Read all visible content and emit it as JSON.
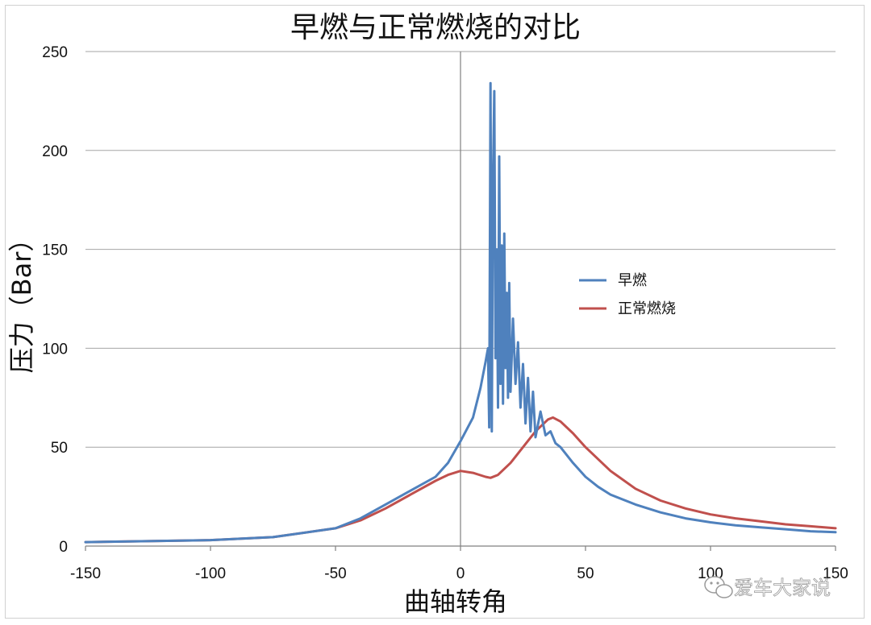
{
  "chart_data": {
    "type": "line",
    "title": "早燃与正常燃烧的对比",
    "xlabel": "曲轴转角",
    "ylabel": "压力（Bar）",
    "xlim": [
      -150,
      150
    ],
    "ylim": [
      0,
      250
    ],
    "xticks": [
      "-150",
      "-100",
      "-50",
      "0",
      "50",
      "100",
      "150"
    ],
    "yticks": [
      "0",
      "50",
      "100",
      "150",
      "200",
      "250"
    ],
    "grid": "horizontal",
    "legend_position": "right",
    "series": [
      {
        "name": "早燃",
        "color": "#4f81bd",
        "x": [
          -150,
          -100,
          -75,
          -50,
          -40,
          -30,
          -20,
          -10,
          -5,
          0,
          5,
          8,
          10,
          11,
          11.5,
          12,
          12.5,
          13,
          13.5,
          14,
          14.5,
          15,
          15.5,
          16,
          16.5,
          17,
          17.5,
          18,
          18.5,
          19,
          19.5,
          20,
          21,
          22,
          23,
          24,
          25,
          26,
          27,
          28,
          29,
          30,
          32,
          34,
          36,
          38,
          40,
          45,
          50,
          55,
          60,
          70,
          80,
          90,
          100,
          110,
          120,
          130,
          140,
          150
        ],
        "values": [
          2,
          3,
          4.5,
          9,
          14,
          21,
          28,
          35,
          42,
          53,
          65,
          80,
          93,
          100,
          60,
          234,
          58,
          185,
          230,
          95,
          150,
          70,
          197,
          82,
          152,
          72,
          158,
          90,
          128,
          75,
          133,
          78,
          115,
          82,
          103,
          70,
          92,
          62,
          85,
          58,
          78,
          55,
          68,
          56,
          58,
          52,
          50,
          42,
          35,
          30,
          26,
          21,
          17,
          14,
          12,
          10.5,
          9.5,
          8.5,
          7.5,
          7
        ]
      },
      {
        "name": "正常燃烧",
        "color": "#c0504d",
        "x": [
          -150,
          -100,
          -75,
          -50,
          -40,
          -30,
          -20,
          -10,
          -5,
          0,
          5,
          10,
          12,
          15,
          20,
          25,
          30,
          35,
          37,
          40,
          45,
          50,
          60,
          70,
          80,
          90,
          100,
          110,
          120,
          130,
          140,
          150
        ],
        "values": [
          2,
          3,
          4.5,
          9,
          13,
          19,
          26,
          33,
          36,
          38,
          37,
          35,
          34.5,
          36,
          42,
          50,
          58,
          64,
          65,
          63,
          57,
          50,
          38,
          29,
          23,
          19,
          16,
          14,
          12.5,
          11,
          10,
          9
        ]
      }
    ]
  },
  "watermark": {
    "icon": "wechat-icon",
    "text": "爱车大家说"
  }
}
